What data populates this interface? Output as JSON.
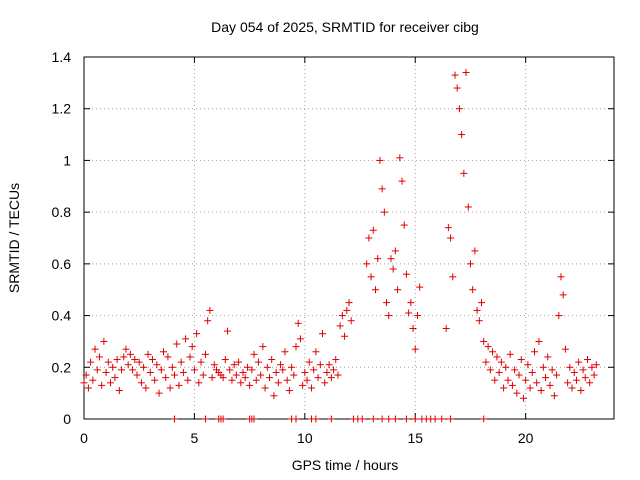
{
  "chart_data": {
    "type": "scatter",
    "title": "Day 054 of 2025, SRMTID for receiver cibg",
    "xlabel": "GPS time / hours",
    "ylabel": "SRMTID / TECUs",
    "xlim": [
      0,
      24
    ],
    "ylim": [
      0,
      1.4
    ],
    "xticks": [
      0,
      5,
      10,
      15,
      20
    ],
    "yticks": [
      0,
      0.2,
      0.4,
      0.6,
      0.8,
      1,
      1.2,
      1.4
    ],
    "xtick_labels": [
      "0",
      "5",
      "10",
      "15",
      "20"
    ],
    "ytick_labels": [
      "0",
      "0.2",
      "0.4",
      "0.6",
      "0.8",
      "1",
      "1.2",
      "1.4"
    ],
    "grid": true,
    "marker": "+",
    "color": "#e00000",
    "series": [
      {
        "name": "srmtid",
        "points": [
          [
            0.0,
            0.14
          ],
          [
            0.1,
            0.17
          ],
          [
            0.2,
            0.12
          ],
          [
            0.3,
            0.22
          ],
          [
            0.4,
            0.15
          ],
          [
            0.5,
            0.27
          ],
          [
            0.6,
            0.19
          ],
          [
            0.7,
            0.24
          ],
          [
            0.8,
            0.13
          ],
          [
            0.9,
            0.3
          ],
          [
            1.0,
            0.18
          ],
          [
            1.1,
            0.22
          ],
          [
            1.2,
            0.14
          ],
          [
            1.3,
            0.2
          ],
          [
            1.4,
            0.16
          ],
          [
            1.5,
            0.23
          ],
          [
            1.6,
            0.11
          ],
          [
            1.7,
            0.19
          ],
          [
            1.8,
            0.24
          ],
          [
            1.9,
            0.27
          ],
          [
            2.0,
            0.21
          ],
          [
            2.1,
            0.25
          ],
          [
            2.2,
            0.19
          ],
          [
            2.3,
            0.23
          ],
          [
            2.4,
            0.17
          ],
          [
            2.5,
            0.22
          ],
          [
            2.6,
            0.14
          ],
          [
            2.7,
            0.2
          ],
          [
            2.8,
            0.12
          ],
          [
            2.9,
            0.25
          ],
          [
            3.0,
            0.18
          ],
          [
            3.1,
            0.23
          ],
          [
            3.2,
            0.15
          ],
          [
            3.3,
            0.21
          ],
          [
            3.4,
            0.1
          ],
          [
            3.5,
            0.19
          ],
          [
            3.6,
            0.26
          ],
          [
            3.7,
            0.16
          ],
          [
            3.8,
            0.24
          ],
          [
            3.9,
            0.12
          ],
          [
            4.0,
            0.2
          ],
          [
            4.1,
            0.17
          ],
          [
            4.2,
            0.29
          ],
          [
            4.3,
            0.13
          ],
          [
            4.4,
            0.22
          ],
          [
            4.5,
            0.18
          ],
          [
            4.6,
            0.31
          ],
          [
            4.7,
            0.15
          ],
          [
            4.8,
            0.24
          ],
          [
            4.9,
            0.28
          ],
          [
            5.0,
            0.19
          ],
          [
            5.1,
            0.33
          ],
          [
            5.2,
            0.14
          ],
          [
            5.3,
            0.22
          ],
          [
            5.4,
            0.17
          ],
          [
            5.5,
            0.25
          ],
          [
            5.6,
            0.38
          ],
          [
            5.7,
            0.42
          ],
          [
            5.8,
            0.16
          ],
          [
            5.9,
            0.21
          ],
          [
            6.0,
            0.19
          ],
          [
            6.1,
            0.18
          ],
          [
            6.2,
            0.17
          ],
          [
            6.3,
            0.16
          ],
          [
            6.4,
            0.23
          ],
          [
            6.5,
            0.34
          ],
          [
            6.6,
            0.19
          ],
          [
            6.7,
            0.15
          ],
          [
            6.8,
            0.21
          ],
          [
            6.9,
            0.17
          ],
          [
            7.0,
            0.22
          ],
          [
            7.1,
            0.14
          ],
          [
            7.2,
            0.18
          ],
          [
            7.3,
            0.16
          ],
          [
            7.4,
            0.2
          ],
          [
            7.5,
            0.13
          ],
          [
            7.6,
            0.19
          ],
          [
            7.7,
            0.25
          ],
          [
            7.8,
            0.15
          ],
          [
            7.9,
            0.22
          ],
          [
            8.0,
            0.17
          ],
          [
            8.1,
            0.28
          ],
          [
            8.2,
            0.12
          ],
          [
            8.3,
            0.2
          ],
          [
            8.4,
            0.16
          ],
          [
            8.5,
            0.23
          ],
          [
            8.6,
            0.09
          ],
          [
            8.7,
            0.18
          ],
          [
            8.8,
            0.14
          ],
          [
            8.9,
            0.21
          ],
          [
            9.0,
            0.19
          ],
          [
            9.1,
            0.26
          ],
          [
            9.2,
            0.15
          ],
          [
            9.3,
            0.11
          ],
          [
            9.4,
            0.2
          ],
          [
            9.5,
            0.17
          ],
          [
            9.6,
            0.28
          ],
          [
            9.7,
            0.37
          ],
          [
            9.8,
            0.31
          ],
          [
            9.9,
            0.13
          ],
          [
            10.0,
            0.18
          ],
          [
            10.1,
            0.15
          ],
          [
            10.2,
            0.22
          ],
          [
            10.3,
            0.12
          ],
          [
            10.4,
            0.19
          ],
          [
            10.5,
            0.26
          ],
          [
            10.6,
            0.16
          ],
          [
            10.7,
            0.21
          ],
          [
            10.8,
            0.33
          ],
          [
            10.9,
            0.14
          ],
          [
            11.0,
            0.18
          ],
          [
            11.1,
            0.21
          ],
          [
            11.2,
            0.16
          ],
          [
            11.3,
            0.19
          ],
          [
            11.4,
            0.23
          ],
          [
            11.5,
            0.17
          ],
          [
            11.6,
            0.36
          ],
          [
            11.7,
            0.4
          ],
          [
            11.8,
            0.32
          ],
          [
            11.9,
            0.42
          ],
          [
            12.0,
            0.45
          ],
          [
            12.1,
            0.38
          ],
          [
            12.8,
            0.6
          ],
          [
            12.9,
            0.7
          ],
          [
            13.0,
            0.55
          ],
          [
            13.1,
            0.73
          ],
          [
            13.2,
            0.5
          ],
          [
            13.3,
            0.62
          ],
          [
            13.4,
            1.0
          ],
          [
            13.5,
            0.89
          ],
          [
            13.6,
            0.8
          ],
          [
            13.7,
            0.45
          ],
          [
            13.8,
            0.4
          ],
          [
            13.9,
            0.62
          ],
          [
            14.0,
            0.58
          ],
          [
            14.1,
            0.65
          ],
          [
            14.2,
            0.5
          ],
          [
            14.3,
            1.01
          ],
          [
            14.4,
            0.92
          ],
          [
            14.5,
            0.75
          ],
          [
            14.6,
            0.56
          ],
          [
            14.7,
            0.41
          ],
          [
            14.8,
            0.45
          ],
          [
            14.9,
            0.35
          ],
          [
            15.0,
            0.27
          ],
          [
            15.1,
            0.4
          ],
          [
            15.2,
            0.51
          ],
          [
            16.4,
            0.35
          ],
          [
            16.5,
            0.74
          ],
          [
            16.6,
            0.7
          ],
          [
            16.7,
            0.55
          ],
          [
            16.8,
            1.33
          ],
          [
            16.9,
            1.28
          ],
          [
            17.0,
            1.2
          ],
          [
            17.1,
            1.1
          ],
          [
            17.2,
            0.95
          ],
          [
            17.3,
            1.34
          ],
          [
            17.4,
            0.82
          ],
          [
            17.5,
            0.6
          ],
          [
            17.6,
            0.5
          ],
          [
            17.7,
            0.65
          ],
          [
            17.8,
            0.42
          ],
          [
            17.9,
            0.38
          ],
          [
            18.0,
            0.45
          ],
          [
            18.1,
            0.3
          ],
          [
            18.2,
            0.22
          ],
          [
            18.3,
            0.28
          ],
          [
            18.4,
            0.19
          ],
          [
            18.5,
            0.26
          ],
          [
            18.6,
            0.15
          ],
          [
            18.7,
            0.24
          ],
          [
            18.8,
            0.18
          ],
          [
            18.9,
            0.22
          ],
          [
            19.0,
            0.12
          ],
          [
            19.1,
            0.2
          ],
          [
            19.2,
            0.15
          ],
          [
            19.3,
            0.25
          ],
          [
            19.4,
            0.13
          ],
          [
            19.5,
            0.19
          ],
          [
            19.6,
            0.1
          ],
          [
            19.7,
            0.17
          ],
          [
            19.8,
            0.23
          ],
          [
            19.9,
            0.08
          ],
          [
            20.0,
            0.15
          ],
          [
            20.1,
            0.21
          ],
          [
            20.2,
            0.12
          ],
          [
            20.3,
            0.18
          ],
          [
            20.4,
            0.26
          ],
          [
            20.5,
            0.14
          ],
          [
            20.6,
            0.3
          ],
          [
            20.7,
            0.11
          ],
          [
            20.8,
            0.2
          ],
          [
            20.9,
            0.16
          ],
          [
            21.0,
            0.24
          ],
          [
            21.1,
            0.13
          ],
          [
            21.2,
            0.19
          ],
          [
            21.3,
            0.09
          ],
          [
            21.4,
            0.17
          ],
          [
            21.5,
            0.4
          ],
          [
            21.6,
            0.55
          ],
          [
            21.7,
            0.48
          ],
          [
            21.8,
            0.27
          ],
          [
            21.9,
            0.14
          ],
          [
            22.0,
            0.2
          ],
          [
            22.1,
            0.12
          ],
          [
            22.2,
            0.18
          ],
          [
            22.3,
            0.15
          ],
          [
            22.4,
            0.22
          ],
          [
            22.5,
            0.11
          ],
          [
            22.6,
            0.19
          ],
          [
            22.7,
            0.16
          ],
          [
            22.8,
            0.23
          ],
          [
            22.9,
            0.14
          ],
          [
            23.0,
            0.2
          ],
          [
            23.1,
            0.17
          ],
          [
            23.2,
            0.21
          ]
        ]
      },
      {
        "name": "zero-values",
        "points": [
          [
            4.1,
            0
          ],
          [
            5.5,
            0
          ],
          [
            6.1,
            0
          ],
          [
            6.2,
            0
          ],
          [
            6.3,
            0
          ],
          [
            7.5,
            0
          ],
          [
            7.6,
            0
          ],
          [
            7.7,
            0
          ],
          [
            9.4,
            0
          ],
          [
            9.6,
            0
          ],
          [
            10.3,
            0
          ],
          [
            10.5,
            0
          ],
          [
            11.2,
            0
          ],
          [
            12.2,
            0
          ],
          [
            12.4,
            0
          ],
          [
            12.6,
            0
          ],
          [
            13.1,
            0
          ],
          [
            13.5,
            0
          ],
          [
            13.8,
            0
          ],
          [
            14.1,
            0
          ],
          [
            14.6,
            0
          ],
          [
            15.0,
            0
          ],
          [
            15.3,
            0
          ],
          [
            15.5,
            0
          ],
          [
            15.7,
            0
          ],
          [
            15.9,
            0
          ],
          [
            16.2,
            0
          ],
          [
            16.6,
            0
          ],
          [
            18.1,
            0
          ]
        ]
      }
    ]
  }
}
